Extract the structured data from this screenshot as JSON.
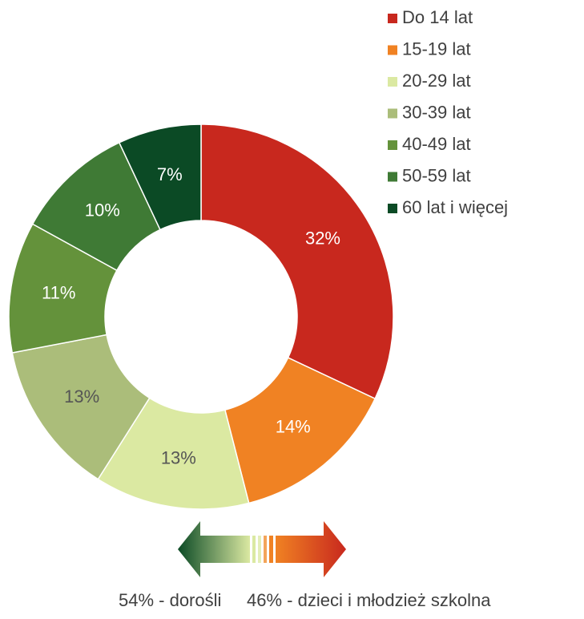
{
  "chart_data": {
    "type": "donut",
    "categories": [
      "Do 14 lat",
      "15-19 lat",
      "20-29 lat",
      "30-39 lat",
      "40-49 lat",
      "50-59 lat",
      "60 lat i więcej"
    ],
    "values": [
      32,
      14,
      13,
      13,
      11,
      10,
      7
    ],
    "value_labels": [
      "32%",
      "14%",
      "13%",
      "13%",
      "11%",
      "10%",
      "7%"
    ],
    "colors": [
      "#c8281e",
      "#f08223",
      "#dbe9a2",
      "#abbd7a",
      "#64923b",
      "#3f7a35",
      "#0b4a25"
    ],
    "legend": "top-right",
    "annotations": [
      "54% - dorośli",
      "46% - dzieci i młodzież szkolna"
    ]
  }
}
